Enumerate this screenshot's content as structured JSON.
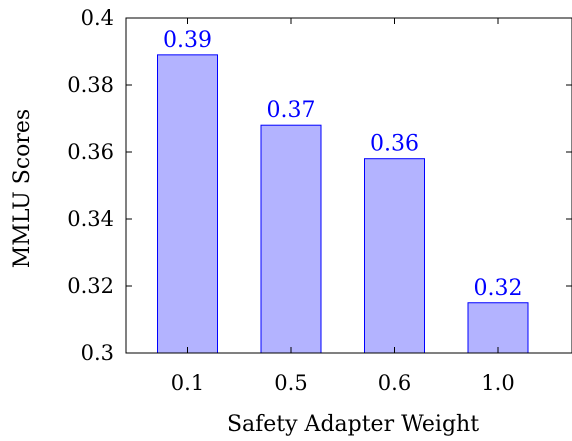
{
  "chart_data": {
    "type": "bar",
    "categories": [
      "0.1",
      "0.5",
      "0.6",
      "1.0"
    ],
    "values": [
      0.389,
      0.368,
      0.358,
      0.315
    ],
    "data_labels": [
      "0.39",
      "0.37",
      "0.36",
      "0.32"
    ],
    "xlabel": "Safety Adapter Weight",
    "ylabel": "MMLU Scores",
    "ylim": [
      0.3,
      0.4
    ],
    "yticks": [
      0.3,
      0.32,
      0.34,
      0.36,
      0.38,
      0.4
    ],
    "ytick_labels": [
      "0.3",
      "0.32",
      "0.34",
      "0.36",
      "0.38",
      "0.4"
    ],
    "grid": false,
    "bar_fill": "#b3b3ff",
    "bar_edge": "#0000ff",
    "label_color": "#0000ff"
  }
}
